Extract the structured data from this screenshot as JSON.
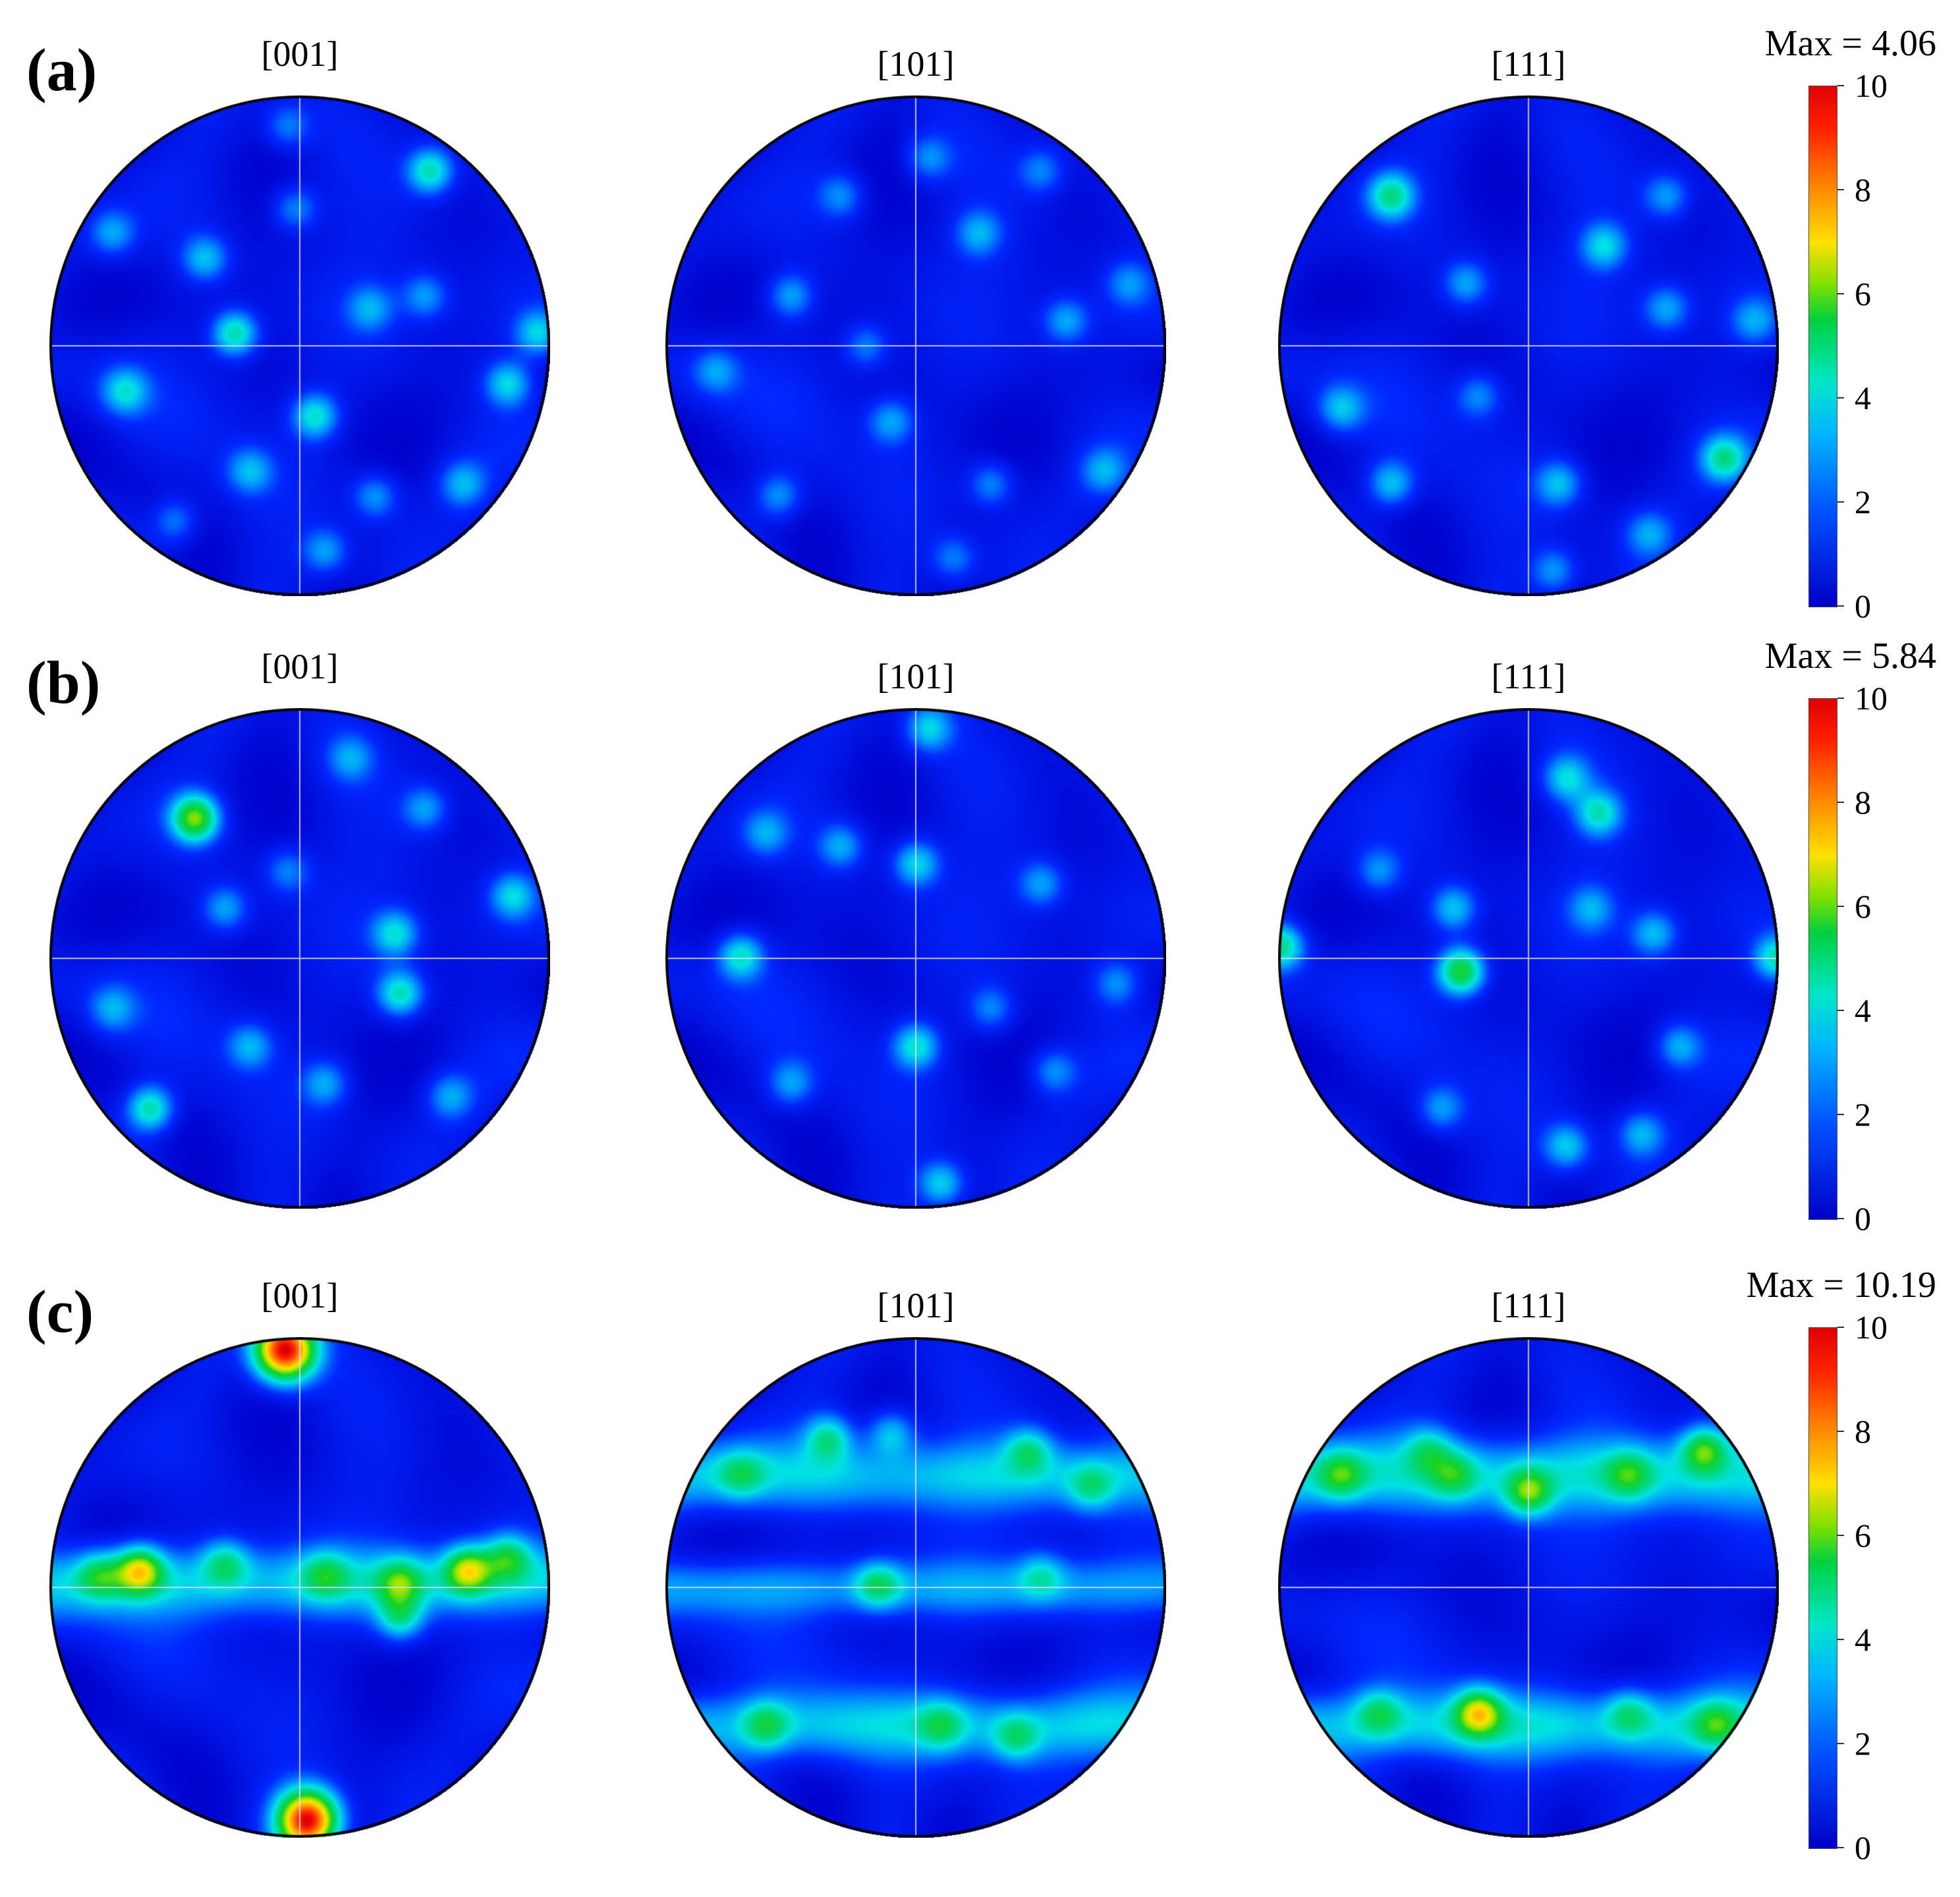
{
  "colormap": {
    "low": "#0000c8",
    "mid": "#00e6c8",
    "green": "#00d040",
    "yellow": "#ffe000",
    "high": "#e00000"
  },
  "colorbar_ticks": [
    "10",
    "8",
    "6",
    "4",
    "2",
    "0"
  ],
  "chart_data": [
    {
      "type": "heatmap",
      "panel": "(a)",
      "max_text": "Max = 4.06",
      "max": 4.06,
      "colorbar_range": [
        0,
        10
      ],
      "pole_figures": [
        {
          "label": "[001]",
          "hotspots": [
            [
              -0.26,
              0.05,
              4.0
            ],
            [
              0.52,
              0.7,
              3.8
            ],
            [
              0.06,
              -0.28,
              3.5
            ],
            [
              -0.7,
              -0.18,
              3.0
            ],
            [
              0.83,
              -0.15,
              3.2
            ],
            [
              0.95,
              0.05,
              3.0
            ],
            [
              -0.38,
              0.35,
              2.8
            ],
            [
              -0.2,
              -0.5,
              2.6
            ],
            [
              0.3,
              -0.6,
              2.5
            ],
            [
              -0.02,
              0.55,
              2.4
            ],
            [
              -0.75,
              0.45,
              2.5
            ],
            [
              0.5,
              0.2,
              2.4
            ],
            [
              0.1,
              -0.82,
              2.5
            ],
            [
              -0.5,
              -0.7,
              2.3
            ],
            [
              0.65,
              -0.55,
              2.6
            ],
            [
              -0.05,
              0.88,
              2.2
            ],
            [
              0.28,
              0.15,
              2.4
            ]
          ]
        },
        {
          "label": "[101]",
          "hotspots": [
            [
              -0.5,
              0.2,
              2.6
            ],
            [
              0.25,
              0.45,
              2.5
            ],
            [
              0.6,
              0.1,
              2.6
            ],
            [
              -0.1,
              -0.3,
              2.5
            ],
            [
              0.3,
              -0.55,
              2.4
            ],
            [
              -0.55,
              -0.6,
              2.5
            ],
            [
              0.75,
              -0.5,
              2.4
            ],
            [
              -0.8,
              -0.1,
              2.3
            ],
            [
              0.05,
              0.75,
              2.3
            ],
            [
              -0.3,
              0.6,
              2.3
            ],
            [
              0.5,
              0.7,
              2.2
            ],
            [
              0.15,
              -0.85,
              2.2
            ],
            [
              -0.2,
              0.0,
              2.3
            ],
            [
              0.85,
              0.25,
              2.2
            ]
          ]
        },
        {
          "label": "[111]",
          "hotspots": [
            [
              -0.55,
              0.6,
              3.9
            ],
            [
              0.78,
              -0.45,
              3.8
            ],
            [
              -0.55,
              -0.55,
              3.0
            ],
            [
              0.12,
              -0.55,
              2.8
            ],
            [
              0.3,
              0.4,
              3.0
            ],
            [
              -0.25,
              0.25,
              2.6
            ],
            [
              0.55,
              0.15,
              2.6
            ],
            [
              -0.75,
              -0.25,
              2.7
            ],
            [
              0.1,
              -0.9,
              2.5
            ],
            [
              0.48,
              -0.75,
              2.4
            ],
            [
              -0.2,
              -0.2,
              2.3
            ],
            [
              0.9,
              0.1,
              2.4
            ],
            [
              0.55,
              0.6,
              2.5
            ]
          ]
        }
      ]
    },
    {
      "type": "heatmap",
      "panel": "(b)",
      "max_text": "Max = 5.84",
      "max": 5.84,
      "colorbar_range": [
        0,
        10
      ],
      "pole_figures": [
        {
          "label": "[001]",
          "hotspots": [
            [
              -0.42,
              0.56,
              5.8
            ],
            [
              -0.6,
              -0.6,
              4.0
            ],
            [
              0.4,
              -0.14,
              3.8
            ],
            [
              0.38,
              0.1,
              3.2
            ],
            [
              0.85,
              0.25,
              3.0
            ],
            [
              -0.3,
              0.2,
              2.6
            ],
            [
              0.1,
              -0.5,
              2.5
            ],
            [
              -0.2,
              -0.35,
              2.6
            ],
            [
              0.5,
              0.6,
              2.5
            ],
            [
              0.2,
              0.8,
              2.3
            ],
            [
              -0.75,
              -0.2,
              2.4
            ],
            [
              0.6,
              -0.55,
              2.5
            ],
            [
              -0.05,
              0.35,
              2.2
            ]
          ]
        },
        {
          "label": "[101]",
          "hotspots": [
            [
              -0.7,
              0.01,
              3.5
            ],
            [
              0.0,
              -0.35,
              3.4
            ],
            [
              0.0,
              0.38,
              3.2
            ],
            [
              0.1,
              -0.9,
              3.2
            ],
            [
              0.05,
              0.92,
              3.0
            ],
            [
              -0.3,
              0.45,
              2.6
            ],
            [
              0.5,
              0.3,
              2.5
            ],
            [
              -0.5,
              -0.5,
              2.5
            ],
            [
              0.55,
              -0.45,
              2.4
            ],
            [
              -0.6,
              0.5,
              2.4
            ],
            [
              0.8,
              -0.1,
              2.3
            ],
            [
              0.3,
              -0.2,
              2.3
            ]
          ]
        },
        {
          "label": "[111]",
          "hotspots": [
            [
              -0.27,
              -0.05,
              5.4
            ],
            [
              -0.99,
              0.05,
              4.2
            ],
            [
              0.99,
              0.0,
              3.8
            ],
            [
              0.28,
              0.58,
              3.4
            ],
            [
              0.15,
              0.72,
              3.0
            ],
            [
              -0.3,
              0.2,
              3.0
            ],
            [
              0.5,
              0.1,
              2.8
            ],
            [
              0.6,
              -0.35,
              2.7
            ],
            [
              0.15,
              -0.75,
              3.0
            ],
            [
              -0.35,
              -0.6,
              2.5
            ],
            [
              0.45,
              -0.7,
              2.6
            ],
            [
              -0.6,
              0.35,
              2.4
            ],
            [
              0.25,
              0.2,
              2.4
            ]
          ]
        }
      ]
    },
    {
      "type": "heatmap",
      "panel": "(c)",
      "max_text": "Max = 10.19",
      "max": 10.19,
      "colorbar_range": [
        0,
        10
      ],
      "pole_figures": [
        {
          "label": "[001]",
          "band": [
            0.02,
            0.1,
            2.4
          ],
          "hotspots": [
            [
              -0.06,
              0.95,
              10.2
            ],
            [
              0.03,
              -0.93,
              10.1
            ],
            [
              -0.64,
              0.07,
              5.4
            ],
            [
              0.67,
              0.07,
              5.0
            ],
            [
              0.83,
              0.12,
              3.6
            ],
            [
              0.4,
              0.02,
              3.5
            ],
            [
              0.4,
              -0.12,
              3.4
            ],
            [
              -0.3,
              0.1,
              3.0
            ],
            [
              0.1,
              0.05,
              2.8
            ],
            [
              -0.8,
              0.05,
              3.2
            ]
          ]
        },
        {
          "label": "[101]",
          "band": [
            0.45,
            0.1,
            2.3
          ],
          "band2": [
            -0.55,
            0.1,
            2.3
          ],
          "band3": [
            0.0,
            0.08,
            1.8
          ],
          "hotspots": [
            [
              -0.35,
              0.6,
              3.4
            ],
            [
              0.45,
              0.55,
              3.0
            ],
            [
              -0.1,
              0.62,
              2.8
            ],
            [
              -0.15,
              0.01,
              3.3
            ],
            [
              -0.6,
              -0.55,
              3.0
            ],
            [
              0.4,
              -0.6,
              2.8
            ],
            [
              0.1,
              -0.55,
              2.6
            ],
            [
              0.7,
              0.4,
              2.6
            ],
            [
              -0.7,
              0.45,
              2.5
            ],
            [
              0.5,
              0.05,
              2.4
            ]
          ]
        },
        {
          "label": "[111]",
          "band": [
            0.45,
            0.11,
            2.6
          ],
          "band2": [
            -0.55,
            0.1,
            2.5
          ],
          "hotspots": [
            [
              0.0,
              0.38,
              4.2
            ],
            [
              -0.2,
              -0.5,
              5.1
            ],
            [
              0.7,
              0.55,
              4.4
            ],
            [
              -0.75,
              0.45,
              3.2
            ],
            [
              -0.3,
              0.45,
              2.8
            ],
            [
              0.4,
              0.45,
              3.0
            ],
            [
              0.75,
              -0.55,
              3.0
            ],
            [
              -0.6,
              -0.5,
              2.8
            ],
            [
              0.4,
              -0.5,
              2.7
            ],
            [
              -0.4,
              0.55,
              2.6
            ]
          ]
        }
      ]
    }
  ]
}
